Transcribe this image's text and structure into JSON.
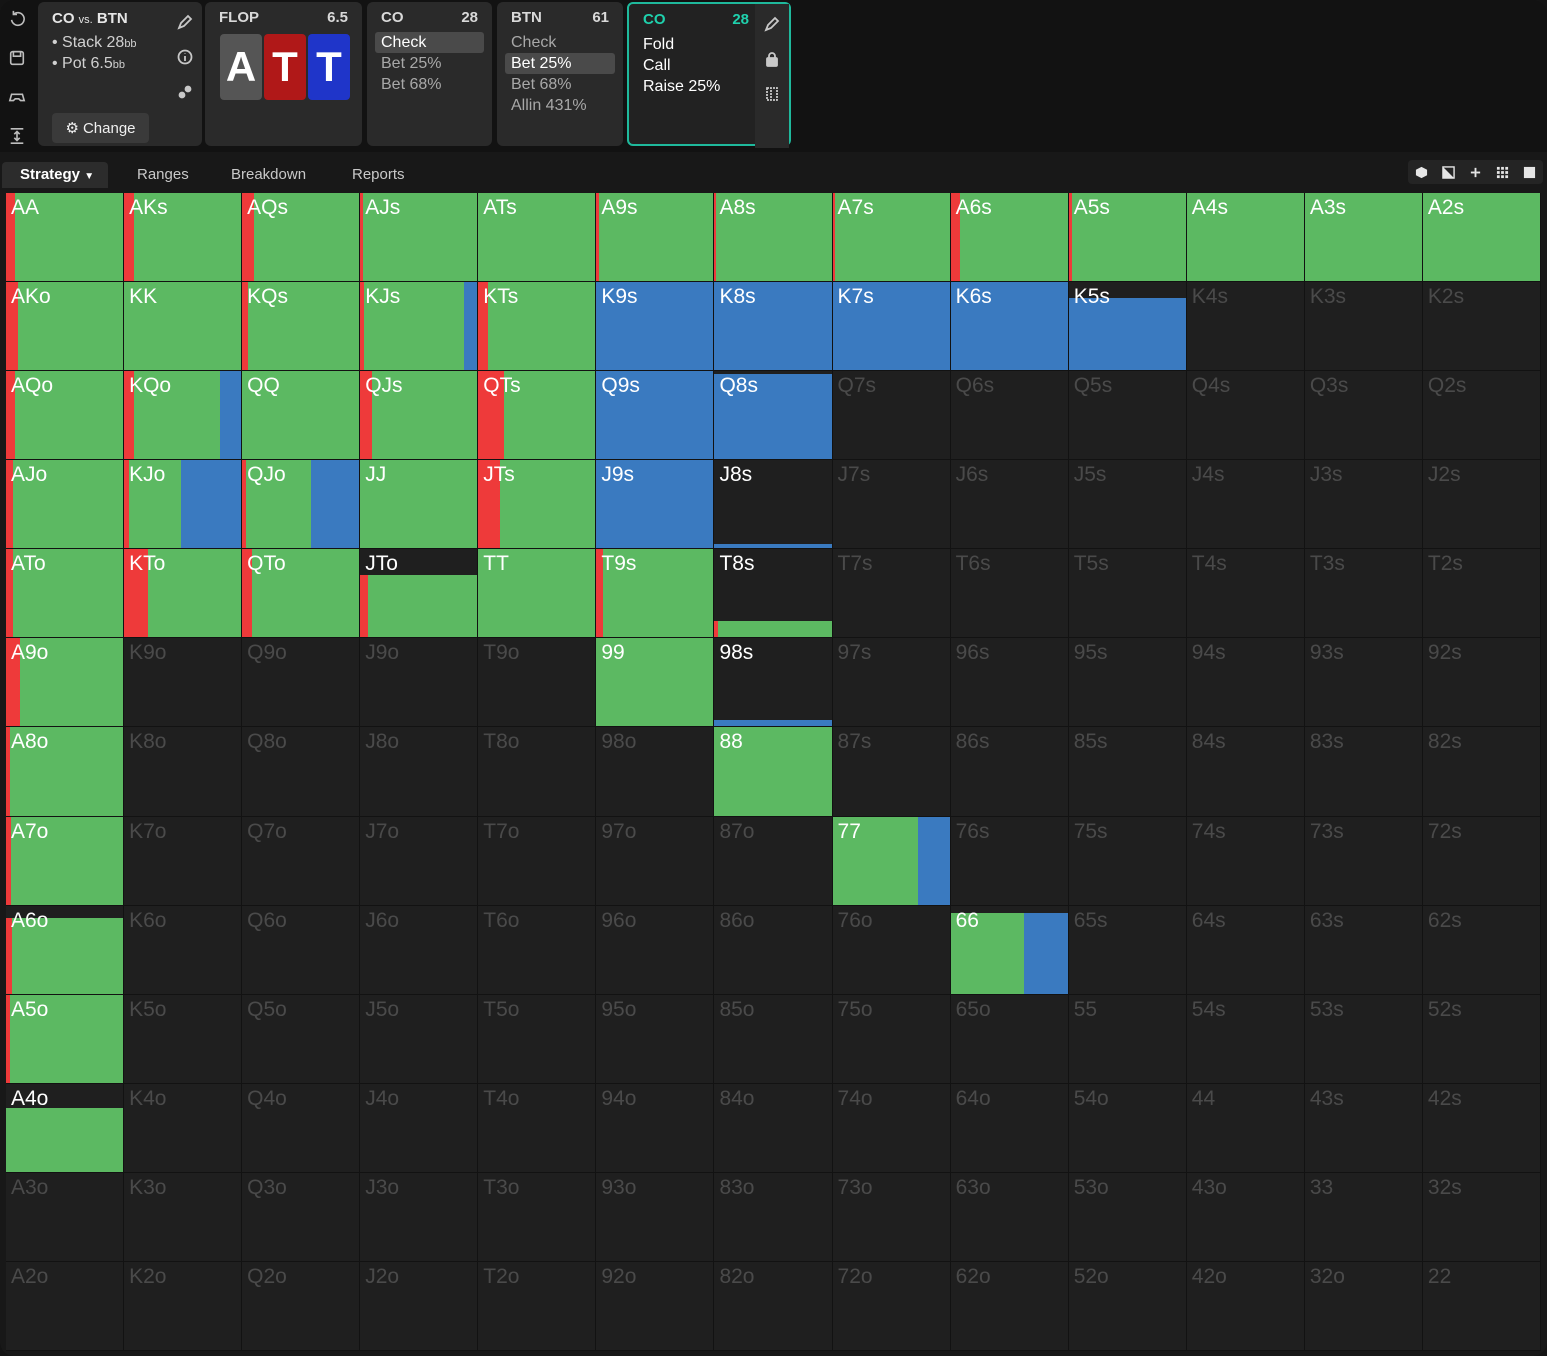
{
  "colors": {
    "call": "#5cb962",
    "raise": "#3a7ac0",
    "fold_red": "#ee3a3a",
    "empty": "#1f1f1f",
    "accent": "#1fb99c"
  },
  "toolbar": {
    "icons": [
      "undo-icon",
      "save-icon",
      "gamepad-icon",
      "expand-icon"
    ]
  },
  "info": {
    "title": "CO",
    "vs": "vs.",
    "title2": "BTN",
    "stack_label": "Stack 28",
    "stack_unit": "bb",
    "pot_label": "Pot 6.5",
    "pot_unit": "bb",
    "change_label": "Change"
  },
  "flop": {
    "label": "FLOP",
    "pot": "6.5",
    "cards": [
      {
        "rank": "A",
        "suit": "spade"
      },
      {
        "rank": "T",
        "suit": "heart"
      },
      {
        "rank": "T",
        "suit": "diamond"
      }
    ]
  },
  "nodes": [
    {
      "player": "CO",
      "stack": "28",
      "actions": [
        "Check",
        "Bet 25%",
        "Bet 68%"
      ],
      "selected": 0
    },
    {
      "player": "BTN",
      "stack": "61",
      "actions": [
        "Check",
        "Bet 25%",
        "Bet 68%",
        "Allin 431%"
      ],
      "selected": 1
    },
    {
      "player": "CO",
      "stack": "28",
      "actions": [
        "Fold",
        "Call",
        "Raise 25%"
      ],
      "selected": -1
    }
  ],
  "tabs": [
    "Strategy",
    "Ranges",
    "Breakdown",
    "Reports"
  ],
  "matrix": {
    "hands": [
      [
        "AA",
        "AKs",
        "AQs",
        "AJs",
        "ATs",
        "A9s",
        "A8s",
        "A7s",
        "A6s",
        "A5s",
        "A4s",
        "A3s",
        "A2s"
      ],
      [
        "AKo",
        "KK",
        "KQs",
        "KJs",
        "KTs",
        "K9s",
        "K8s",
        "K7s",
        "K6s",
        "K5s",
        "K4s",
        "K3s",
        "K2s"
      ],
      [
        "AQo",
        "KQo",
        "QQ",
        "QJs",
        "QTs",
        "Q9s",
        "Q8s",
        "Q7s",
        "Q6s",
        "Q5s",
        "Q4s",
        "Q3s",
        "Q2s"
      ],
      [
        "AJo",
        "KJo",
        "QJo",
        "JJ",
        "JTs",
        "J9s",
        "J8s",
        "J7s",
        "J6s",
        "J5s",
        "J4s",
        "J3s",
        "J2s"
      ],
      [
        "ATo",
        "KTo",
        "QTo",
        "JTo",
        "TT",
        "T9s",
        "T8s",
        "T7s",
        "T6s",
        "T5s",
        "T4s",
        "T3s",
        "T2s"
      ],
      [
        "A9o",
        "K9o",
        "Q9o",
        "J9o",
        "T9o",
        "99",
        "98s",
        "97s",
        "96s",
        "95s",
        "94s",
        "93s",
        "92s"
      ],
      [
        "A8o",
        "K8o",
        "Q8o",
        "J8o",
        "T8o",
        "98o",
        "88",
        "87s",
        "86s",
        "85s",
        "84s",
        "83s",
        "82s"
      ],
      [
        "A7o",
        "K7o",
        "Q7o",
        "J7o",
        "T7o",
        "97o",
        "87o",
        "77",
        "76s",
        "75s",
        "74s",
        "73s",
        "72s"
      ],
      [
        "A6o",
        "K6o",
        "Q6o",
        "J6o",
        "T6o",
        "96o",
        "86o",
        "76o",
        "66",
        "65s",
        "64s",
        "63s",
        "62s"
      ],
      [
        "A5o",
        "K5o",
        "Q5o",
        "J5o",
        "T5o",
        "95o",
        "85o",
        "75o",
        "65o",
        "55",
        "54s",
        "53s",
        "52s"
      ],
      [
        "A4o",
        "K4o",
        "Q4o",
        "J4o",
        "T4o",
        "94o",
        "84o",
        "74o",
        "64o",
        "54o",
        "44",
        "43s",
        "42s"
      ],
      [
        "A3o",
        "K3o",
        "Q3o",
        "J3o",
        "T3o",
        "93o",
        "83o",
        "73o",
        "63o",
        "53o",
        "43o",
        "33",
        "32s"
      ],
      [
        "A2o",
        "K2o",
        "Q2o",
        "J2o",
        "T2o",
        "92o",
        "82o",
        "72o",
        "62o",
        "52o",
        "42o",
        "32o",
        "22"
      ]
    ],
    "strategy": {
      "AA": {
        "w": 1,
        "fold": 0.08,
        "call": 0.92,
        "raise": 0
      },
      "AKs": {
        "w": 1,
        "fold": 0.08,
        "call": 0.92,
        "raise": 0
      },
      "AQs": {
        "w": 1,
        "fold": 0.1,
        "call": 0.9,
        "raise": 0
      },
      "AJs": {
        "w": 1,
        "fold": 0.02,
        "call": 0.98,
        "raise": 0
      },
      "ATs": {
        "w": 1,
        "fold": 0,
        "call": 1,
        "raise": 0
      },
      "A9s": {
        "w": 1,
        "fold": 0.02,
        "call": 0.98,
        "raise": 0
      },
      "A8s": {
        "w": 1,
        "fold": 0.01,
        "call": 0.99,
        "raise": 0
      },
      "A7s": {
        "w": 1,
        "fold": 0.02,
        "call": 0.98,
        "raise": 0
      },
      "A6s": {
        "w": 1,
        "fold": 0.08,
        "call": 0.92,
        "raise": 0
      },
      "A5s": {
        "w": 1,
        "fold": 0.03,
        "call": 0.97,
        "raise": 0
      },
      "A4s": {
        "w": 1,
        "fold": 0,
        "call": 1,
        "raise": 0
      },
      "A3s": {
        "w": 1,
        "fold": 0,
        "call": 1,
        "raise": 0
      },
      "A2s": {
        "w": 1,
        "fold": 0,
        "call": 1,
        "raise": 0
      },
      "AKo": {
        "w": 1,
        "fold": 0.1,
        "call": 0.9,
        "raise": 0
      },
      "KK": {
        "w": 1,
        "fold": 0,
        "call": 1,
        "raise": 0
      },
      "KQs": {
        "w": 1,
        "fold": 0.05,
        "call": 0.95,
        "raise": 0
      },
      "KJs": {
        "w": 1,
        "fold": 0.03,
        "call": 0.85,
        "raise": 0.12
      },
      "KTs": {
        "w": 1,
        "fold": 0.08,
        "call": 0.92,
        "raise": 0
      },
      "K9s": {
        "w": 1,
        "fold": 0,
        "call": 0,
        "raise": 1
      },
      "K8s": {
        "w": 1,
        "fold": 0,
        "call": 0,
        "raise": 1
      },
      "K7s": {
        "w": 1,
        "fold": 0,
        "call": 0,
        "raise": 1
      },
      "K6s": {
        "w": 1,
        "fold": 0,
        "call": 0,
        "raise": 1
      },
      "K5s": {
        "w": 0.82,
        "fold": 0,
        "call": 0,
        "raise": 1
      },
      "AQo": {
        "w": 1,
        "fold": 0.08,
        "call": 0.92,
        "raise": 0
      },
      "KQo": {
        "w": 1,
        "fold": 0.08,
        "call": 0.73,
        "raise": 0.19
      },
      "QQ": {
        "w": 1,
        "fold": 0,
        "call": 1,
        "raise": 0
      },
      "QJs": {
        "w": 1,
        "fold": 0.1,
        "call": 0.9,
        "raise": 0
      },
      "QTs": {
        "w": 1,
        "fold": 0.22,
        "call": 0.78,
        "raise": 0
      },
      "Q9s": {
        "w": 1,
        "fold": 0,
        "call": 0,
        "raise": 1
      },
      "Q8s": {
        "w": 0.97,
        "fold": 0,
        "call": 0,
        "raise": 1
      },
      "AJo": {
        "w": 1,
        "fold": 0.06,
        "call": 0.94,
        "raise": 0
      },
      "KJo": {
        "w": 1,
        "fold": 0.04,
        "call": 0.44,
        "raise": 0.52
      },
      "QJo": {
        "w": 1,
        "fold": 0.03,
        "call": 0.55,
        "raise": 0.42
      },
      "JJ": {
        "w": 1,
        "fold": 0,
        "call": 1,
        "raise": 0
      },
      "JTs": {
        "w": 1,
        "fold": 0.18,
        "call": 0.82,
        "raise": 0
      },
      "J9s": {
        "w": 1,
        "fold": 0,
        "call": 0,
        "raise": 1
      },
      "J8s": {
        "w": 0.06,
        "fold": 0,
        "call": 0,
        "raise": 1
      },
      "ATo": {
        "w": 1,
        "fold": 0.06,
        "call": 0.94,
        "raise": 0
      },
      "KTo": {
        "w": 1,
        "fold": 0.2,
        "call": 0.8,
        "raise": 0
      },
      "QTo": {
        "w": 1,
        "fold": 0.08,
        "call": 0.92,
        "raise": 0
      },
      "JTo": {
        "w": 0.71,
        "fold": 0.07,
        "call": 0.93,
        "raise": 0
      },
      "TT": {
        "w": 1,
        "fold": 0,
        "call": 1,
        "raise": 0
      },
      "T9s": {
        "w": 1,
        "fold": 0.06,
        "call": 0.94,
        "raise": 0
      },
      "T8s": {
        "w": 0.19,
        "fold": 0.03,
        "call": 0.97,
        "raise": 0
      },
      "A9o": {
        "w": 1,
        "fold": 0.12,
        "call": 0.88,
        "raise": 0
      },
      "99": {
        "w": 1,
        "fold": 0,
        "call": 1,
        "raise": 0
      },
      "98s": {
        "w": 0.08,
        "fold": 0,
        "call": 0,
        "raise": 1
      },
      "A8o": {
        "w": 1,
        "fold": 0.03,
        "call": 0.97,
        "raise": 0
      },
      "88": {
        "w": 1,
        "fold": 0,
        "call": 1,
        "raise": 0
      },
      "A7o": {
        "w": 1,
        "fold": 0.04,
        "call": 0.96,
        "raise": 0
      },
      "77": {
        "w": 1,
        "fold": 0,
        "call": 0.72,
        "raise": 0.28
      },
      "A6o": {
        "w": 0.86,
        "fold": 0.05,
        "call": 0.95,
        "raise": 0
      },
      "66": {
        "w": 0.92,
        "fold": 0,
        "call": 0.62,
        "raise": 0.38
      },
      "A5o": {
        "w": 1,
        "fold": 0.03,
        "call": 0.97,
        "raise": 0
      },
      "A4o": {
        "w": 0.73,
        "fold": 0,
        "call": 1,
        "raise": 0
      }
    }
  }
}
